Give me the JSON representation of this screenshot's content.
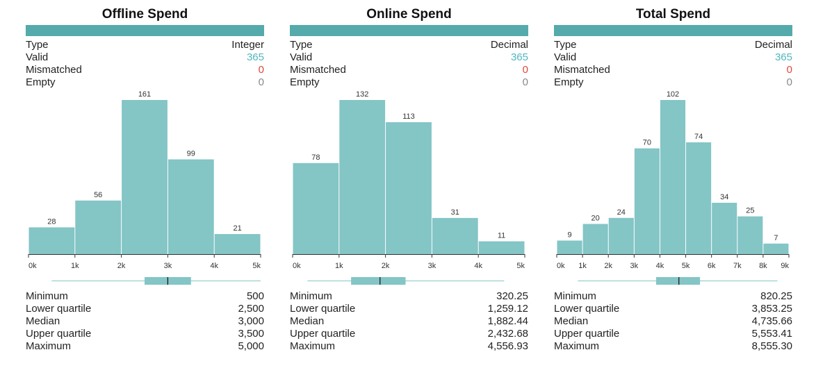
{
  "colors": {
    "accent": "#55aaab",
    "bar": "#84c5c6",
    "valid": "#4fb6bd",
    "mismatched": "#e0463c",
    "empty": "#888888",
    "box": "#84c5c6"
  },
  "labels": {
    "type": "Type",
    "valid": "Valid",
    "mismatched": "Mismatched",
    "empty": "Empty",
    "minimum": "Minimum",
    "lower_quartile": "Lower quartile",
    "median": "Median",
    "upper_quartile": "Upper quartile",
    "maximum": "Maximum"
  },
  "panels": [
    {
      "title": "Offline Spend",
      "type": "Integer",
      "valid": "365",
      "mismatched": "0",
      "empty": "0",
      "stats": {
        "minimum": "500",
        "lower_quartile": "2,500",
        "median": "3,000",
        "upper_quartile": "3,500",
        "maximum": "5,000"
      }
    },
    {
      "title": "Online Spend",
      "type": "Decimal",
      "valid": "365",
      "mismatched": "0",
      "empty": "0",
      "stats": {
        "minimum": "320.25",
        "lower_quartile": "1,259.12",
        "median": "1,882.44",
        "upper_quartile": "2,432.68",
        "maximum": "4,556.93"
      }
    },
    {
      "title": "Total Spend",
      "type": "Decimal",
      "valid": "365",
      "mismatched": "0",
      "empty": "0",
      "stats": {
        "minimum": "820.25",
        "lower_quartile": "3,853.25",
        "median": "4,735.66",
        "upper_quartile": "5,553.41",
        "maximum": "8,555.30"
      }
    }
  ],
  "chart_data": [
    {
      "type": "bar",
      "title": "Offline Spend",
      "bins": [
        [
          0,
          1000
        ],
        [
          1000,
          2000
        ],
        [
          2000,
          3000
        ],
        [
          3000,
          4000
        ],
        [
          4000,
          5000
        ]
      ],
      "values": [
        28,
        56,
        161,
        99,
        21
      ],
      "xticks": [
        "0k",
        "1k",
        "2k",
        "3k",
        "4k",
        "5k"
      ],
      "xlim": [
        0,
        5000
      ],
      "boxplot": {
        "min": 500,
        "q1": 2500,
        "median": 3000,
        "q3": 3500,
        "max": 5000
      }
    },
    {
      "type": "bar",
      "title": "Online Spend",
      "bins": [
        [
          0,
          1000
        ],
        [
          1000,
          2000
        ],
        [
          2000,
          3000
        ],
        [
          3000,
          4000
        ],
        [
          4000,
          5000
        ]
      ],
      "values": [
        78,
        132,
        113,
        31,
        11
      ],
      "xticks": [
        "0k",
        "1k",
        "2k",
        "3k",
        "4k",
        "5k"
      ],
      "xlim": [
        0,
        5000
      ],
      "boxplot": {
        "min": 320.25,
        "q1": 1259.12,
        "median": 1882.44,
        "q3": 2432.68,
        "max": 4556.93
      }
    },
    {
      "type": "bar",
      "title": "Total Spend",
      "bins": [
        [
          0,
          1000
        ],
        [
          1000,
          2000
        ],
        [
          2000,
          3000
        ],
        [
          3000,
          4000
        ],
        [
          4000,
          5000
        ],
        [
          5000,
          6000
        ],
        [
          6000,
          7000
        ],
        [
          7000,
          8000
        ],
        [
          8000,
          9000
        ]
      ],
      "values": [
        9,
        20,
        24,
        70,
        102,
        74,
        34,
        25,
        7
      ],
      "xticks": [
        "0k",
        "1k",
        "2k",
        "3k",
        "4k",
        "5k",
        "6k",
        "7k",
        "8k",
        "9k"
      ],
      "xlim": [
        0,
        9000
      ],
      "boxplot": {
        "min": 820.25,
        "q1": 3853.25,
        "median": 4735.66,
        "q3": 5553.41,
        "max": 8555.3
      }
    }
  ]
}
